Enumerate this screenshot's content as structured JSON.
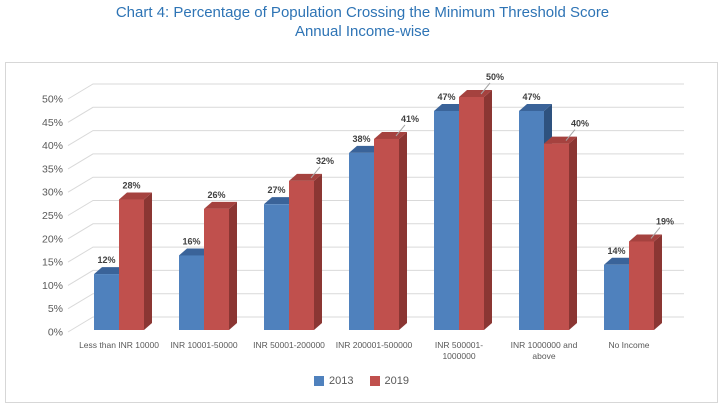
{
  "title_line1": "Chart 4: Percentage of Population Crossing the Minimum Threshold Score",
  "title_line2": "Annual Income-wise",
  "chart_data": {
    "type": "bar",
    "style": "3d-clustered-column",
    "title": "Chart 4: Percentage of Population Crossing the Minimum Threshold Score Annual Income-wise",
    "categories": [
      "Less than INR 10000",
      "INR 10001-50000",
      "INR 50001-200000",
      "INR 200001-500000",
      "INR 500001-\n1000000",
      "INR 1000000 and\nabove",
      "No Income"
    ],
    "series": [
      {
        "name": "2013",
        "color": "#4F81BD",
        "top_color": "#3A6399",
        "side_color": "#2E527F",
        "values": [
          12,
          16,
          27,
          38,
          47,
          47,
          14
        ]
      },
      {
        "name": "2019",
        "color": "#C0504D",
        "top_color": "#A5423F",
        "side_color": "#8B3633",
        "values": [
          28,
          26,
          32,
          41,
          50,
          40,
          19
        ]
      }
    ],
    "value_labels": {
      "2013": [
        "12%",
        "16%",
        "27%",
        "38%",
        "47%",
        "47%",
        "14%"
      ],
      "2019": [
        "28%",
        "26%",
        "32%",
        "41%",
        "50%",
        "40%",
        "19%"
      ]
    },
    "yticks": [
      "0%",
      "5%",
      "10%",
      "15%",
      "20%",
      "25%",
      "30%",
      "35%",
      "40%",
      "45%",
      "50%"
    ],
    "ylim": [
      0,
      50
    ],
    "grid": true,
    "legend_position": "bottom",
    "callout_indices": [
      2,
      3,
      4,
      5,
      6
    ]
  },
  "colors": {
    "title": "#2E74B5",
    "axis_text": "#595959",
    "gridline": "#D9D9D9",
    "border": "#D7D7D7",
    "value_label": "#404040",
    "leader_line": "#A6A6A6",
    "background": "#FFFFFF"
  }
}
